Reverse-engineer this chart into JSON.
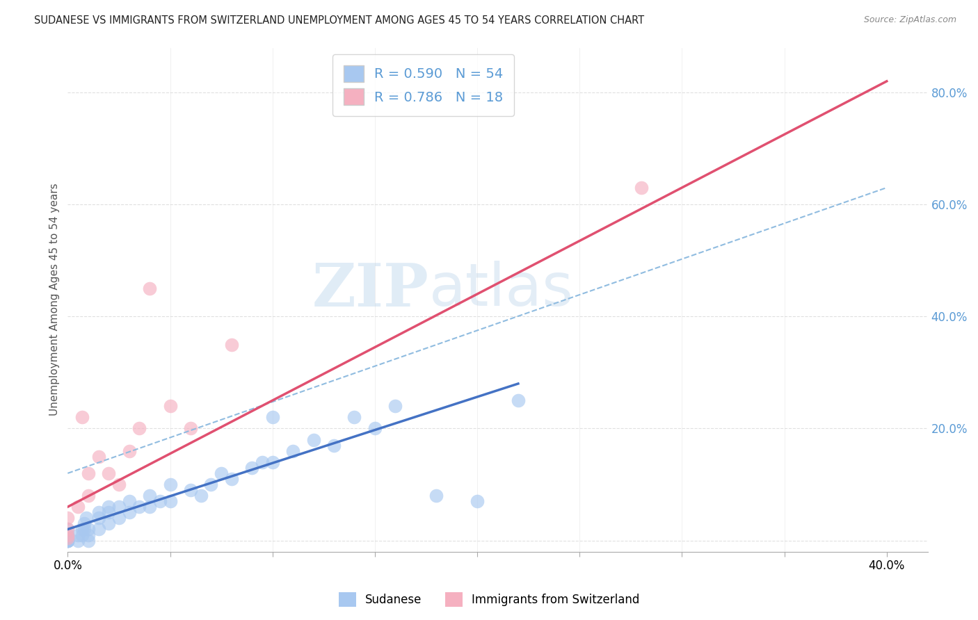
{
  "title": "SUDANESE VS IMMIGRANTS FROM SWITZERLAND UNEMPLOYMENT AMONG AGES 45 TO 54 YEARS CORRELATION CHART",
  "source": "Source: ZipAtlas.com",
  "ylabel": "Unemployment Among Ages 45 to 54 years",
  "xlim": [
    0.0,
    0.42
  ],
  "ylim": [
    -0.02,
    0.88
  ],
  "xticks": [
    0.0,
    0.05,
    0.1,
    0.15,
    0.2,
    0.25,
    0.3,
    0.35,
    0.4
  ],
  "yticks_right": [
    0.0,
    0.2,
    0.4,
    0.6,
    0.8
  ],
  "yticklabels_right": [
    "",
    "20.0%",
    "40.0%",
    "60.0%",
    "80.0%"
  ],
  "sudanese_color": "#a8c8f0",
  "swiss_color": "#f5b0c0",
  "sudanese_R": 0.59,
  "sudanese_N": 54,
  "swiss_R": 0.786,
  "swiss_N": 18,
  "legend_label_sudanese": "Sudanese",
  "legend_label_swiss": "Immigrants from Switzerland",
  "watermark_zip": "ZIP",
  "watermark_atlas": "atlas",
  "sudanese_x": [
    0.0,
    0.0,
    0.0,
    0.0,
    0.0,
    0.0,
    0.0,
    0.0,
    0.0,
    0.0,
    0.005,
    0.005,
    0.007,
    0.007,
    0.008,
    0.008,
    0.009,
    0.01,
    0.01,
    0.01,
    0.015,
    0.015,
    0.015,
    0.02,
    0.02,
    0.02,
    0.025,
    0.025,
    0.03,
    0.03,
    0.035,
    0.04,
    0.04,
    0.045,
    0.05,
    0.05,
    0.06,
    0.065,
    0.07,
    0.075,
    0.08,
    0.09,
    0.095,
    0.1,
    0.1,
    0.11,
    0.12,
    0.13,
    0.14,
    0.15,
    0.16,
    0.18,
    0.2,
    0.22
  ],
  "sudanese_y": [
    0.0,
    0.0,
    0.0,
    0.0,
    0.0,
    0.005,
    0.005,
    0.01,
    0.01,
    0.02,
    0.0,
    0.01,
    0.01,
    0.02,
    0.02,
    0.03,
    0.04,
    0.0,
    0.01,
    0.02,
    0.02,
    0.04,
    0.05,
    0.03,
    0.05,
    0.06,
    0.04,
    0.06,
    0.05,
    0.07,
    0.06,
    0.06,
    0.08,
    0.07,
    0.07,
    0.1,
    0.09,
    0.08,
    0.1,
    0.12,
    0.11,
    0.13,
    0.14,
    0.14,
    0.22,
    0.16,
    0.18,
    0.17,
    0.22,
    0.2,
    0.24,
    0.08,
    0.07,
    0.25
  ],
  "swiss_x": [
    0.0,
    0.0,
    0.0,
    0.0,
    0.005,
    0.007,
    0.01,
    0.01,
    0.015,
    0.02,
    0.025,
    0.03,
    0.035,
    0.04,
    0.05,
    0.06,
    0.08,
    0.28
  ],
  "swiss_y": [
    0.005,
    0.01,
    0.02,
    0.04,
    0.06,
    0.22,
    0.08,
    0.12,
    0.15,
    0.12,
    0.1,
    0.16,
    0.2,
    0.45,
    0.24,
    0.2,
    0.35,
    0.63
  ],
  "grid_color": "#e0e0e0",
  "title_color": "#222222",
  "axis_label_color": "#555555",
  "right_axis_color": "#5b9bd5",
  "line_blue_color": "#4472c4",
  "line_pink_color": "#e05070",
  "dashed_line_color": "#90bce0",
  "pink_line_x0": 0.0,
  "pink_line_y0": 0.06,
  "pink_line_x1": 0.4,
  "pink_line_y1": 0.82,
  "blue_line_x0": 0.0,
  "blue_line_y0": 0.02,
  "blue_line_x1": 0.22,
  "blue_line_y1": 0.28,
  "dash_line_x0": 0.0,
  "dash_line_y0": 0.12,
  "dash_line_x1": 0.4,
  "dash_line_y1": 0.63
}
